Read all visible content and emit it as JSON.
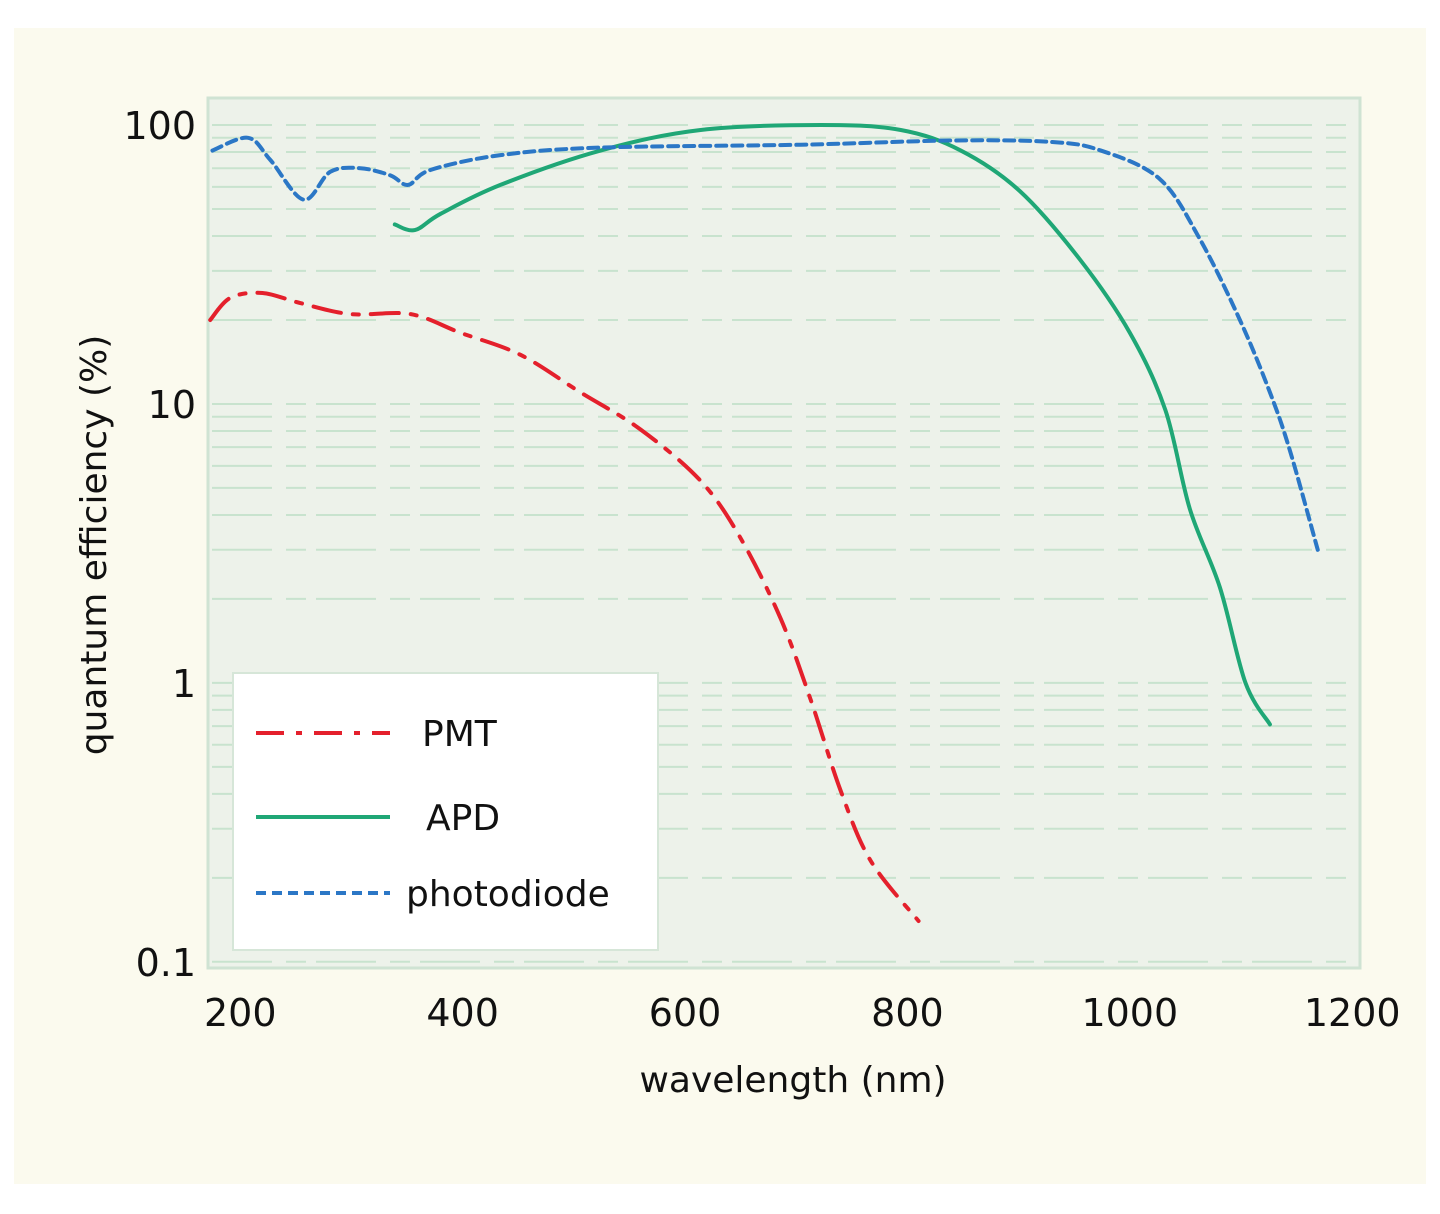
{
  "chart_data": {
    "type": "line",
    "title": "",
    "xlabel": "wavelength (nm)",
    "ylabel": "quantum efficiency (%)",
    "xlim": [
      171,
      1207
    ],
    "ylim": [
      0.095,
      125
    ],
    "yscale": "log",
    "xticks": [
      200,
      400,
      600,
      800,
      1000,
      1200
    ],
    "xtick_labels": [
      "200",
      "400",
      "600",
      "800",
      "1000",
      "1200"
    ],
    "yticks": [
      0.1,
      1,
      10,
      100
    ],
    "ytick_labels": [
      "0.1",
      "1",
      "10",
      "100"
    ],
    "grid": "horizontal, faint dashed",
    "legend": {
      "placement": "bottom-left"
    },
    "colors": {
      "background": "#fbfaee",
      "plot_background": "#edf2ea",
      "grid": "#bfe0c8"
    },
    "series": [
      {
        "name": "PMT",
        "color": "#e4202c",
        "style": "dash-dot",
        "x": [
          173,
          191,
          220,
          254,
          299,
          353,
          398,
          452,
          506,
          560,
          614,
          650,
          686,
          713,
          740,
          767,
          810
        ],
        "y": [
          20,
          24,
          25,
          23,
          21,
          21,
          18,
          15,
          11,
          8.1,
          5.3,
          3.3,
          1.7,
          0.87,
          0.41,
          0.23,
          0.14
        ]
      },
      {
        "name": "APD",
        "color": "#1fa776",
        "style": "solid",
        "x": [
          339,
          357,
          380,
          434,
          524,
          614,
          722,
          794,
          848,
          901,
          955,
          1000,
          1032,
          1054,
          1081,
          1104,
          1126
        ],
        "y": [
          44,
          42,
          48,
          61,
          81,
          96,
          100,
          96,
          81,
          58,
          33,
          18,
          9.5,
          4.2,
          2.2,
          1.0,
          0.71
        ]
      },
      {
        "name": "photodiode",
        "color": "#2b77c6",
        "style": "dashed",
        "x": [
          175,
          207,
          227,
          257,
          281,
          308,
          335,
          351,
          371,
          434,
          524,
          704,
          839,
          929,
          974,
          1027,
          1063,
          1099,
          1126,
          1144,
          1169
        ],
        "y": [
          81,
          90,
          75,
          54,
          68,
          70,
          66,
          61,
          69,
          78,
          83,
          85,
          88,
          87,
          81,
          64,
          39,
          20,
          11,
          6.8,
          3.0
        ]
      }
    ]
  }
}
